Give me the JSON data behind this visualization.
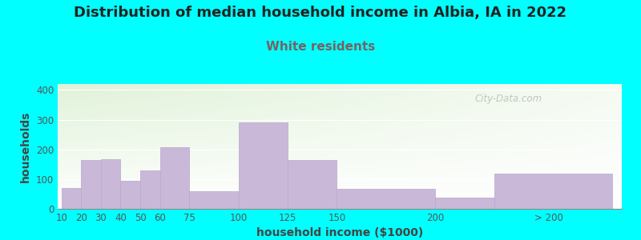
{
  "title": "Distribution of median household income in Albia, IA in 2022",
  "subtitle": "White residents",
  "xlabel": "household income ($1000)",
  "ylabel": "households",
  "background_color": "#00FFFF",
  "bar_color": "#c9b8d8",
  "bar_edge_color": "#b8a8cc",
  "categories": [
    "10",
    "20",
    "30",
    "40",
    "50",
    "60",
    "75",
    "100",
    "125",
    "150",
    "200",
    "> 200"
  ],
  "values": [
    70,
    163,
    168,
    95,
    128,
    207,
    60,
    290,
    165,
    68,
    37,
    118
  ],
  "left_edges": [
    10,
    20,
    30,
    40,
    50,
    60,
    75,
    100,
    125,
    150,
    200,
    230
  ],
  "widths": [
    10,
    10,
    10,
    10,
    10,
    15,
    25,
    25,
    25,
    50,
    30,
    60
  ],
  "ylim": [
    0,
    420
  ],
  "yticks": [
    0,
    100,
    200,
    300,
    400
  ],
  "xtick_positions": [
    10,
    20,
    30,
    40,
    50,
    60,
    75,
    100,
    125,
    150,
    200,
    258
  ],
  "xlim": [
    8,
    295
  ],
  "title_fontsize": 13,
  "subtitle_fontsize": 11,
  "subtitle_color": "#7a6060",
  "axis_label_fontsize": 10,
  "tick_fontsize": 8.5,
  "watermark": "City-Data.com"
}
